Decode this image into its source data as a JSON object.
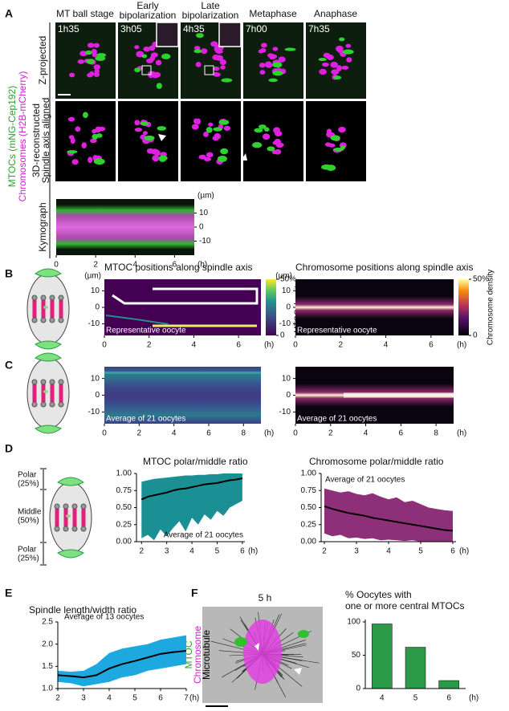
{
  "panel_letters": [
    "A",
    "B",
    "C",
    "D",
    "E",
    "F"
  ],
  "panel_a": {
    "stages": [
      [
        "MT ball stage"
      ],
      [
        "Early",
        "bipolarization"
      ],
      [
        "Late",
        "bipolarization"
      ],
      [
        "Metaphase"
      ],
      [
        "Anaphase"
      ]
    ],
    "times": [
      "1h35",
      "3h05",
      "4h35",
      "7h00",
      "7h35"
    ],
    "row_labels": [
      [
        "Z-projected"
      ],
      [
        "3D-reconstructed",
        "Spindle axis aligned"
      ],
      [
        "Kymograph"
      ]
    ],
    "channels": [
      "MTOCs (mNG-Cep192)",
      "Chromosomes (H2B-mCherry)"
    ]
  },
  "panel_d": {
    "zones": [
      [
        "Polar",
        "(25%)"
      ],
      [
        "Middle",
        "(50%)"
      ],
      [
        "Polar",
        "(25%)"
      ]
    ]
  },
  "panel_f": {
    "time": "5 h",
    "channels": [
      "MTOC",
      "Chromosome",
      "Microtubule"
    ]
  },
  "chart_data": [
    {
      "type": "heatmap",
      "style": "kymograph",
      "xlim": [
        0,
        7
      ],
      "xticks": [
        0,
        2,
        4,
        6
      ],
      "x_unit": "(h)",
      "ylim": [
        -20,
        20
      ],
      "yticks": [
        10,
        0,
        -10
      ],
      "y_unit": "(µm)",
      "y_side": "right"
    },
    {
      "type": "heatmap",
      "style": "mtoc-single",
      "title": "MTOC positions along spindle axis",
      "annotation": "Representative oocyte",
      "xlim": [
        0,
        7
      ],
      "xticks": [
        0,
        2,
        4,
        6
      ],
      "x_unit": "(h)",
      "ylim": [
        -17,
        17
      ],
      "yticks": [
        10,
        0,
        -10
      ],
      "y_unit": "(µm)",
      "colorbar": {
        "label": "MTOC density",
        "lim": [
          0,
          50
        ],
        "ticks": [
          {
            "value": 50,
            "label": "50%"
          },
          0
        ]
      }
    },
    {
      "type": "heatmap",
      "style": "chrom-single",
      "title": "Chromosome positions along spindle axis",
      "annotation": "Representative oocyte",
      "xlim": [
        0,
        7
      ],
      "xticks": [
        0,
        2,
        4,
        6
      ],
      "x_unit": "(h)",
      "ylim": [
        -17,
        17
      ],
      "yticks": [
        10,
        0,
        -10
      ],
      "y_unit": "(µm)",
      "colorbar": {
        "label": "Chromosome density",
        "lim": [
          0,
          50
        ],
        "ticks": [
          {
            "value": 50,
            "label": "50%"
          },
          0
        ]
      }
    },
    {
      "type": "heatmap",
      "style": "mtoc-avg",
      "annotation": "Average of 21 oocytes",
      "xlim": [
        0,
        9
      ],
      "xticks": [
        0,
        2,
        4,
        6,
        8
      ],
      "x_unit": "(h)",
      "ylim": [
        -17,
        17
      ],
      "yticks": [
        10,
        0,
        -10
      ]
    },
    {
      "type": "heatmap",
      "style": "chrom-avg",
      "annotation": "Average of 21 oocytes",
      "xlim": [
        0,
        9
      ],
      "xticks": [
        0,
        2,
        4,
        6,
        8
      ],
      "x_unit": "(h)",
      "ylim": [
        -17,
        17
      ],
      "yticks": [
        10,
        0,
        -10
      ]
    },
    {
      "type": "line",
      "title": "MTOC polar/middle ratio",
      "annotation": "Average of 21 oocytes",
      "color": "#1a8f94",
      "xlim": [
        1.8,
        6.1
      ],
      "xticks": [
        2,
        3,
        4,
        5,
        6
      ],
      "x_unit": "(h)",
      "ylim": [
        0,
        1
      ],
      "yticks": [
        {
          "value": 0,
          "label": "0.00"
        },
        0.25,
        {
          "value": 0.5,
          "label": "0.50"
        },
        0.75,
        {
          "value": 1,
          "label": "1.00"
        }
      ],
      "x": [
        2,
        2.25,
        2.5,
        2.75,
        3,
        3.25,
        3.5,
        3.75,
        4,
        4.25,
        4.5,
        4.75,
        5,
        5.25,
        5.5,
        5.75,
        6
      ],
      "mean": [
        0.62,
        0.66,
        0.68,
        0.7,
        0.72,
        0.75,
        0.77,
        0.78,
        0.8,
        0.82,
        0.84,
        0.85,
        0.86,
        0.88,
        0.9,
        0.91,
        0.93
      ],
      "upper": [
        0.88,
        0.9,
        0.92,
        0.93,
        0.94,
        0.95,
        0.96,
        0.97,
        0.97,
        0.98,
        0.98,
        0.99,
        0.99,
        1,
        1,
        1,
        1
      ],
      "lower": [
        0.05,
        0.1,
        0.02,
        0.18,
        0.08,
        0.2,
        0.3,
        0.15,
        0.35,
        0.25,
        0.4,
        0.32,
        0.45,
        0.38,
        0.5,
        0.55,
        0.6
      ]
    },
    {
      "type": "line",
      "title": "Chromosome polar/middle ratio",
      "annotation": "Average of 21 oocytes",
      "color": "#8e2f7a",
      "xlim": [
        1.9,
        6.1
      ],
      "xticks": [
        2,
        3,
        4,
        5,
        6
      ],
      "x_unit": "(h)",
      "ylim": [
        0,
        1
      ],
      "yticks": [
        {
          "value": 0,
          "label": "0.00"
        },
        0.25,
        {
          "value": 0.5,
          "label": "0.50"
        },
        0.75,
        {
          "value": 1,
          "label": "1.00"
        }
      ],
      "x": [
        2,
        2.25,
        2.5,
        2.75,
        3,
        3.25,
        3.5,
        3.75,
        4,
        4.25,
        4.5,
        4.75,
        5,
        5.25,
        5.5,
        5.75,
        6
      ],
      "mean": [
        0.52,
        0.48,
        0.45,
        0.42,
        0.4,
        0.38,
        0.35,
        0.33,
        0.31,
        0.29,
        0.27,
        0.25,
        0.23,
        0.21,
        0.19,
        0.17,
        0.16
      ],
      "upper": [
        0.78,
        0.75,
        0.72,
        0.74,
        0.7,
        0.68,
        0.71,
        0.66,
        0.62,
        0.65,
        0.58,
        0.6,
        0.55,
        0.5,
        0.48,
        0.46,
        0.45
      ],
      "lower": [
        0.12,
        0.08,
        0.1,
        0.05,
        0.06,
        0.04,
        0.05,
        0.02,
        0.03,
        0.02,
        0.01,
        0.02,
        0,
        0,
        0,
        0,
        0
      ]
    },
    {
      "type": "line",
      "title": "Spindle length/width ratio",
      "annotation": "Average of 13 oocytes",
      "color": "#1ea8e0",
      "xlim": [
        2,
        7
      ],
      "xticks": [
        2,
        3,
        4,
        5,
        6,
        7
      ],
      "x_unit": "(h)",
      "ylim": [
        1,
        2.5
      ],
      "yticks": [
        {
          "value": 1,
          "label": "1.0"
        },
        1.5,
        {
          "value": 2,
          "label": "2.0"
        },
        2.5
      ],
      "x": [
        2,
        2.5,
        3,
        3.5,
        4,
        4.5,
        5,
        5.5,
        6,
        6.5,
        7
      ],
      "mean": [
        1.3,
        1.28,
        1.25,
        1.3,
        1.45,
        1.55,
        1.62,
        1.7,
        1.78,
        1.82,
        1.85
      ],
      "upper": [
        1.4,
        1.38,
        1.4,
        1.55,
        1.8,
        1.9,
        1.95,
        2,
        2.1,
        2.15,
        2.2
      ],
      "lower": [
        1.15,
        1.12,
        1.05,
        1.1,
        1.15,
        1.25,
        1.3,
        1.4,
        1.45,
        1.5,
        1.55
      ]
    },
    {
      "type": "bar",
      "title": [
        "% Oocytes with",
        "one or more central MTOCs"
      ],
      "color": "#2a9a48",
      "categories": [
        "4",
        "5",
        "6"
      ],
      "values": [
        97,
        62,
        12
      ],
      "x_unit": "(h)",
      "ylim": [
        0,
        100
      ],
      "yticks": [
        0,
        50,
        100
      ]
    }
  ]
}
